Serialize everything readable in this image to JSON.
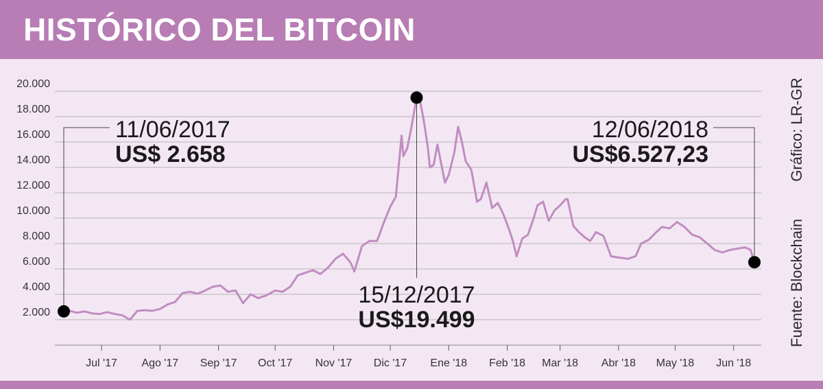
{
  "header": {
    "title": "HISTÓRICO DEL BITCOIN"
  },
  "side": {
    "credit": "Gráfico: LR-GR",
    "source": "Fuente: Blockchain"
  },
  "colors": {
    "header_bg": "#b77db4",
    "line": "#c08dc0",
    "background": "#f3e7f4",
    "grid": "#b5b5b5",
    "text": "#1a1a1a"
  },
  "chart_data": {
    "type": "line",
    "title": "HISTÓRICO DEL BITCOIN",
    "xlabel": "",
    "ylabel": "",
    "x_start": "2017-06-11",
    "x_end": "2018-06-12",
    "ylim": [
      0,
      20000
    ],
    "yticks": [
      2000,
      4000,
      6000,
      8000,
      10000,
      12000,
      14000,
      16000,
      18000,
      20000
    ],
    "ytick_labels": [
      "2.000",
      "4.000",
      "6.000",
      "8.000",
      "10.000",
      "12.000",
      "14.000",
      "16.000",
      "18.000",
      "20.000"
    ],
    "xticks": [
      "2017-07-01",
      "2017-08-01",
      "2017-09-01",
      "2017-10-01",
      "2017-11-01",
      "2017-12-01",
      "2018-01-01",
      "2018-02-01",
      "2018-03-01",
      "2018-04-01",
      "2018-05-01",
      "2018-06-01"
    ],
    "xtick_labels": [
      "Jul '17",
      "Ago '17",
      "Sep '17",
      "Oct '17",
      "Nov '17",
      "Dic '17",
      "Ene '18",
      "Feb '18",
      "Mar '18",
      "Abr '18",
      "May '18",
      "Jun '18"
    ],
    "grid": true,
    "series": [
      {
        "x": [
          "2017-06-11",
          "2017-06-14",
          "2017-06-18",
          "2017-06-22",
          "2017-06-26",
          "2017-06-30",
          "2017-07-04",
          "2017-07-08",
          "2017-07-12",
          "2017-07-16",
          "2017-07-20",
          "2017-07-24",
          "2017-07-28",
          "2017-08-01",
          "2017-08-05",
          "2017-08-09",
          "2017-08-13",
          "2017-08-17",
          "2017-08-21",
          "2017-08-25",
          "2017-08-29",
          "2017-09-02",
          "2017-09-06",
          "2017-09-10",
          "2017-09-14",
          "2017-09-18",
          "2017-09-22",
          "2017-09-26",
          "2017-10-01",
          "2017-10-05",
          "2017-10-09",
          "2017-10-13",
          "2017-10-17",
          "2017-10-21",
          "2017-10-25",
          "2017-10-29",
          "2017-11-02",
          "2017-11-06",
          "2017-11-10",
          "2017-11-12",
          "2017-11-16",
          "2017-11-20",
          "2017-11-24",
          "2017-11-28",
          "2017-12-01",
          "2017-12-04",
          "2017-12-07",
          "2017-12-08",
          "2017-12-10",
          "2017-12-12",
          "2017-12-15",
          "2017-12-17",
          "2017-12-19",
          "2017-12-21",
          "2017-12-22",
          "2017-12-24",
          "2017-12-26",
          "2017-12-28",
          "2017-12-30",
          "2018-01-01",
          "2018-01-04",
          "2018-01-06",
          "2018-01-08",
          "2018-01-10",
          "2018-01-13",
          "2018-01-16",
          "2018-01-18",
          "2018-01-21",
          "2018-01-24",
          "2018-01-27",
          "2018-01-30",
          "2018-02-02",
          "2018-02-04",
          "2018-02-06",
          "2018-02-09",
          "2018-02-12",
          "2018-02-15",
          "2018-02-17",
          "2018-02-20",
          "2018-02-23",
          "2018-02-26",
          "2018-03-01",
          "2018-03-04",
          "2018-03-05",
          "2018-03-08",
          "2018-03-11",
          "2018-03-14",
          "2018-03-17",
          "2018-03-20",
          "2018-03-24",
          "2018-03-28",
          "2018-04-01",
          "2018-04-06",
          "2018-04-10",
          "2018-04-13",
          "2018-04-17",
          "2018-04-21",
          "2018-04-24",
          "2018-04-28",
          "2018-05-02",
          "2018-05-06",
          "2018-05-10",
          "2018-05-14",
          "2018-05-18",
          "2018-05-22",
          "2018-05-26",
          "2018-05-30",
          "2018-06-03",
          "2018-06-07",
          "2018-06-10",
          "2018-06-12"
        ],
        "values": [
          2658,
          2700,
          2550,
          2650,
          2500,
          2450,
          2600,
          2450,
          2350,
          2000,
          2700,
          2750,
          2700,
          2850,
          3200,
          3400,
          4100,
          4200,
          4050,
          4300,
          4600,
          4700,
          4200,
          4300,
          3300,
          4000,
          3700,
          3900,
          4300,
          4200,
          4600,
          5500,
          5700,
          5900,
          5600,
          6100,
          6800,
          7200,
          6500,
          5800,
          7800,
          8200,
          8200,
          9800,
          10900,
          11700,
          16500,
          14900,
          15500,
          17000,
          19499,
          19100,
          17500,
          15500,
          14000,
          14200,
          15800,
          14300,
          12800,
          13400,
          15200,
          17200,
          16000,
          14500,
          13800,
          11300,
          11500,
          12800,
          10800,
          11200,
          10300,
          9100,
          8200,
          7000,
          8400,
          8700,
          10000,
          11000,
          11300,
          9800,
          10600,
          11000,
          11500,
          11500,
          9400,
          8900,
          8500,
          8200,
          8900,
          8600,
          7000,
          6900,
          6800,
          7000,
          8000,
          8300,
          8900,
          9300,
          9200,
          9700,
          9300,
          8700,
          8500,
          8000,
          7500,
          7300,
          7500,
          7600,
          7700,
          7500,
          6527
        ]
      }
    ],
    "points": [
      {
        "x": "2017-06-11",
        "value": 2658
      },
      {
        "x": "2017-12-15",
        "value": 19499
      },
      {
        "x": "2018-06-12",
        "value": 6527.23
      }
    ],
    "annotations": [
      {
        "date": "11/06/2017",
        "price": "US$ 2.658"
      },
      {
        "date": "15/12/2017",
        "price": "US$19.499"
      },
      {
        "date": "12/06/2018",
        "price": "US$6.527,23"
      }
    ]
  }
}
